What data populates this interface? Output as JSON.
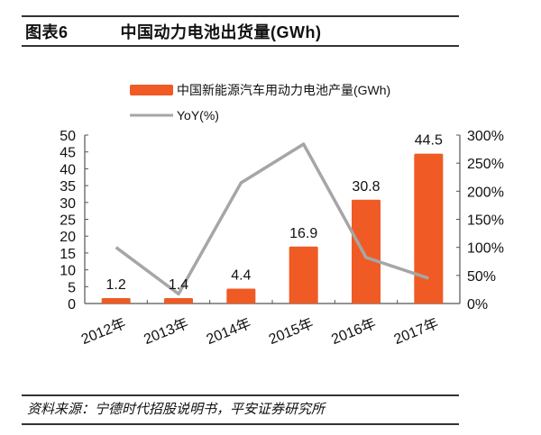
{
  "header": {
    "figure_number": "图表6",
    "title": "中国动力电池出货量(GWh)"
  },
  "footer": {
    "source": "资料来源：宁德时代招股说明书，平安证券研究所"
  },
  "colors": {
    "bar": "#F05A24",
    "line": "#A6A6A6",
    "axis": "#555555"
  },
  "chart_data": {
    "type": "bar",
    "title": "中国动力电池出货量(GWh)",
    "categories": [
      "2012年",
      "2013年",
      "2014年",
      "2015年",
      "2016年",
      "2017年"
    ],
    "series": [
      {
        "name": "中国新能源汽车用动力电池产量(GWh)",
        "type": "bar",
        "axis": "left",
        "values": [
          1.2,
          1.4,
          4.4,
          16.9,
          30.8,
          44.5
        ],
        "data_labels": [
          "1.2",
          "1.4",
          "4.4",
          "16.9",
          "30.8",
          "44.5"
        ]
      },
      {
        "name": "YoY(%)",
        "type": "line",
        "axis": "right",
        "values": [
          100,
          17,
          215,
          284,
          82,
          45
        ]
      }
    ],
    "left_axis": {
      "ylim": [
        0,
        50
      ],
      "ticks": [
        "0",
        "5",
        "10",
        "15",
        "20",
        "25",
        "30",
        "35",
        "40",
        "45",
        "50"
      ]
    },
    "right_axis": {
      "ylim": [
        0,
        300
      ],
      "ticks": [
        "0%",
        "50%",
        "100%",
        "150%",
        "200%",
        "250%",
        "300%"
      ]
    },
    "xlabel": "",
    "ylabel": "",
    "grid": false,
    "legend": {
      "position": "top",
      "entries": [
        "中国新能源汽车用动力电池产量(GWh)",
        "YoY(%)"
      ]
    }
  }
}
